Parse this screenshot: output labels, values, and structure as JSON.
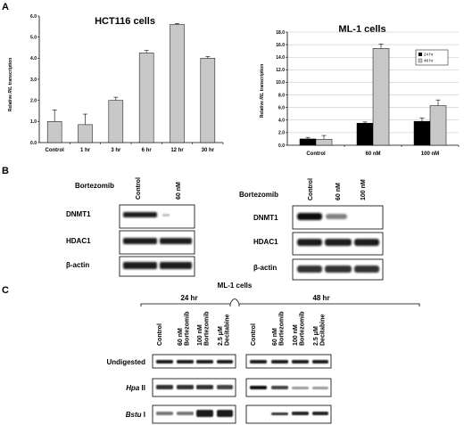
{
  "panels": {
    "a": {
      "letter": "A"
    },
    "b": {
      "letter": "B"
    },
    "c": {
      "letter": "C"
    }
  },
  "chart_data": [
    {
      "type": "bar",
      "title": "HCT116 cells",
      "ylabel": "Relative RIL transcription",
      "ylabel_parts": [
        "Relative ",
        "RIL",
        " transcription"
      ],
      "categories": [
        "Control",
        "1 hr",
        "3 hr",
        "6 hr",
        "12 hr",
        "30 hr"
      ],
      "values": [
        1.0,
        0.85,
        2.0,
        4.25,
        5.6,
        4.0
      ],
      "errors": [
        0.55,
        0.5,
        0.15,
        0.12,
        0.05,
        0.08
      ],
      "ylim": [
        0.0,
        6.0
      ],
      "yticks": [
        "0.0",
        "1.0",
        "2.0",
        "3.0",
        "4.0",
        "5.0",
        "6.0"
      ],
      "bar_color": "#c8c8c8",
      "grid": false
    },
    {
      "type": "bar",
      "title": "ML-1 cells",
      "ylabel": "Relative RIL transcription",
      "ylabel_parts": [
        "Relative ",
        "RIL",
        " transcription"
      ],
      "categories": [
        "Control",
        "60 nM",
        "100 nM"
      ],
      "series": [
        {
          "name": "24 hr",
          "values": [
            1.0,
            3.5,
            3.8
          ],
          "errors": [
            0.25,
            0.2,
            0.55
          ],
          "color": "#000000"
        },
        {
          "name": "48 hr",
          "values": [
            0.95,
            15.4,
            6.3
          ],
          "errors": [
            0.6,
            0.7,
            0.9
          ],
          "color": "#c8c8c8"
        }
      ],
      "ylim": [
        0.0,
        18.0
      ],
      "yticks": [
        "0.0",
        "2.0",
        "4.0",
        "6.0",
        "8.0",
        "10.0",
        "12.0",
        "14.0",
        "16.0",
        "18.0"
      ],
      "legend": "top-right",
      "grid": true
    }
  ],
  "blot_b_left": {
    "treatment": "Bortezomib",
    "lanes": [
      "Control",
      "60 nM"
    ],
    "rows": [
      "DNMT1",
      "HDAC1",
      "β-actin"
    ]
  },
  "blot_b_right": {
    "treatment": "Bortezomib",
    "lanes": [
      "Control",
      "60 nM",
      "100 nM"
    ],
    "rows": [
      "DNMT1",
      "HDAC1",
      "β-actin"
    ]
  },
  "blot_c": {
    "cell_line": "ML-1 cells",
    "group_left": "24 hr",
    "group_right": "48 hr",
    "lanes_left": [
      [
        "Control"
      ],
      [
        "60 nM",
        "Bortezomib"
      ],
      [
        "100 nM",
        "Bortezomib"
      ],
      [
        "2.5 μM",
        "Decitabine"
      ]
    ],
    "lanes_right": [
      [
        "Control"
      ],
      [
        "60 nM",
        "Bortezomib"
      ],
      [
        "100 nM",
        "Bortezomib"
      ],
      [
        "2.5 μM",
        "Decitabine"
      ]
    ],
    "rows": [
      {
        "label": "Undigested",
        "italic": ""
      },
      {
        "label": " II",
        "italic": "Hpa"
      },
      {
        "label": " I",
        "italic": "Bstu"
      }
    ]
  }
}
